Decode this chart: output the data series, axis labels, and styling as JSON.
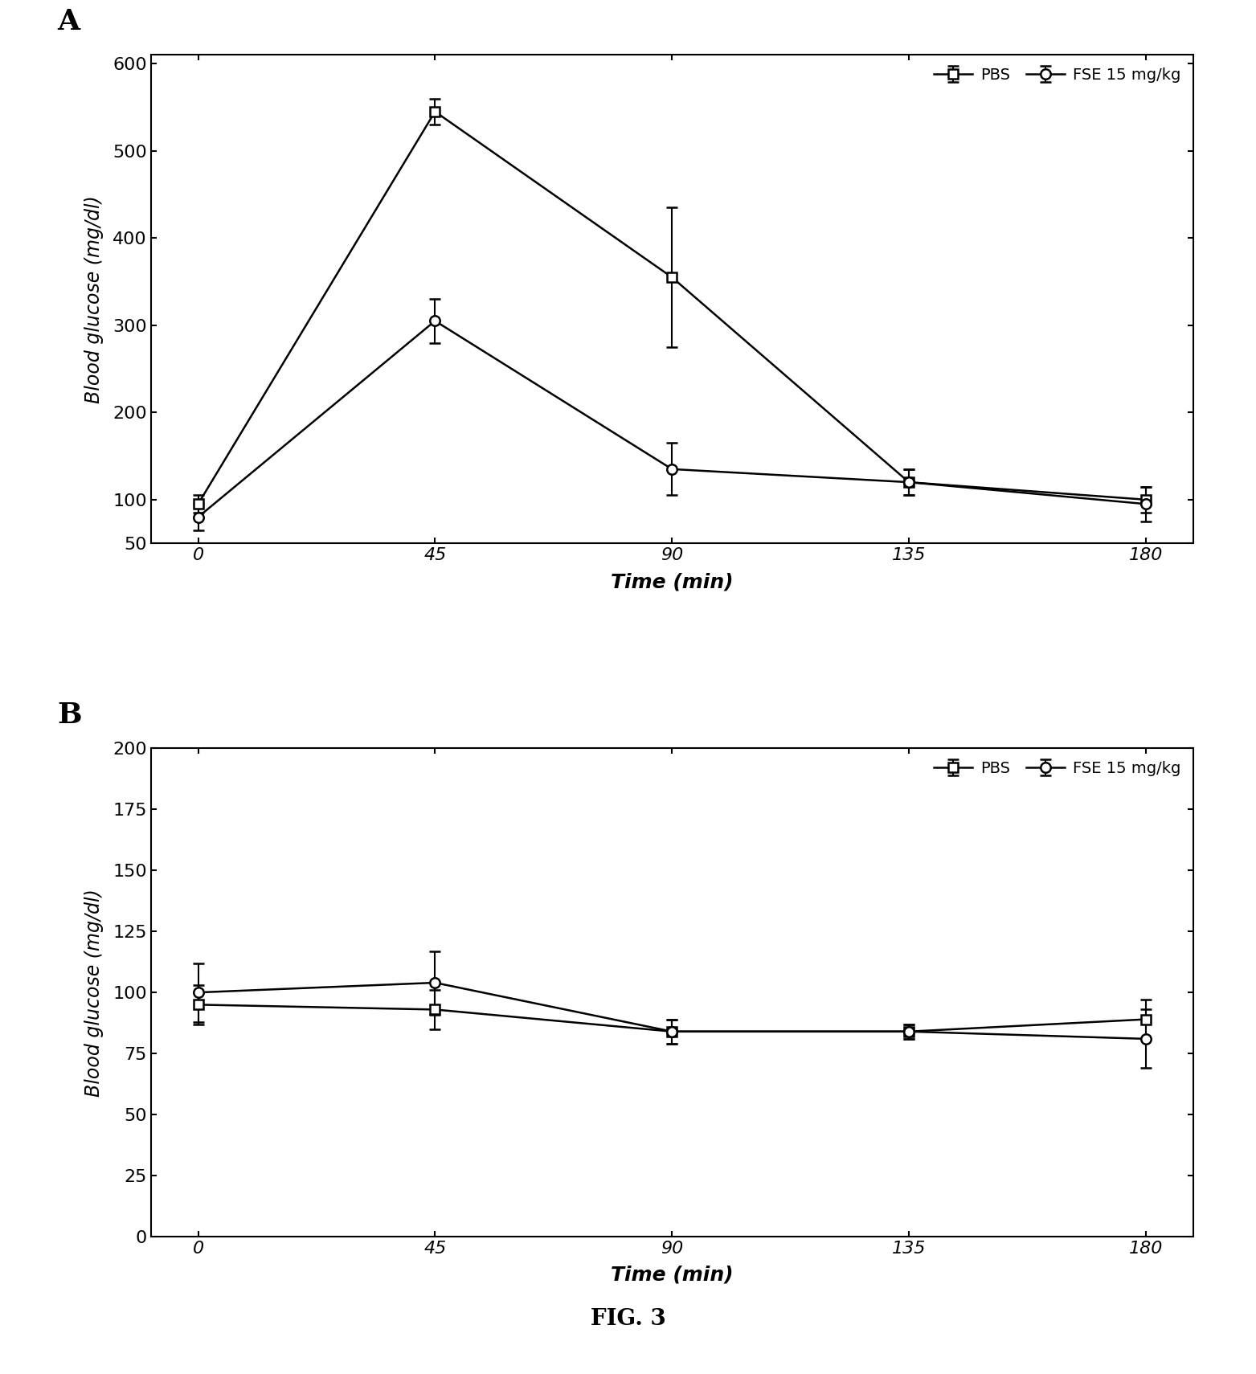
{
  "fig_title": "FIG. 3",
  "panel_A": {
    "label": "A",
    "x": [
      0,
      45,
      90,
      135,
      180
    ],
    "pbs_y": [
      95,
      545,
      355,
      120,
      100
    ],
    "pbs_yerr": [
      10,
      15,
      80,
      15,
      15
    ],
    "fse_y": [
      80,
      305,
      135,
      120,
      95
    ],
    "fse_yerr": [
      15,
      25,
      30,
      15,
      20
    ],
    "ylabel": "Blood glucose (mg/dl)",
    "xlabel": "Time (min)",
    "ylim_bottom": 50,
    "ylim_top": 610,
    "yticks": [
      50,
      100,
      200,
      300,
      400,
      500,
      600
    ],
    "xticks": [
      0,
      45,
      90,
      135,
      180
    ],
    "legend_pbs": "PBS",
    "legend_fse": "FSE 15 mg/kg"
  },
  "panel_B": {
    "label": "B",
    "x": [
      0,
      45,
      90,
      135,
      180
    ],
    "pbs_y": [
      95,
      93,
      84,
      84,
      89
    ],
    "pbs_yerr": [
      8,
      8,
      5,
      3,
      8
    ],
    "fse_y": [
      100,
      104,
      84,
      84,
      81
    ],
    "fse_yerr": [
      12,
      13,
      5,
      3,
      12
    ],
    "ylabel": "Blood glucose (mg/dl)",
    "xlabel": "Time (min)",
    "ylim_bottom": 0,
    "ylim_top": 200,
    "yticks": [
      0,
      25,
      50,
      75,
      100,
      125,
      150,
      175,
      200
    ],
    "xticks": [
      0,
      45,
      90,
      135,
      180
    ],
    "legend_pbs": "PBS",
    "legend_fse": "FSE 15 mg/kg"
  },
  "line_color": "#000000",
  "bg_color": "#ffffff"
}
